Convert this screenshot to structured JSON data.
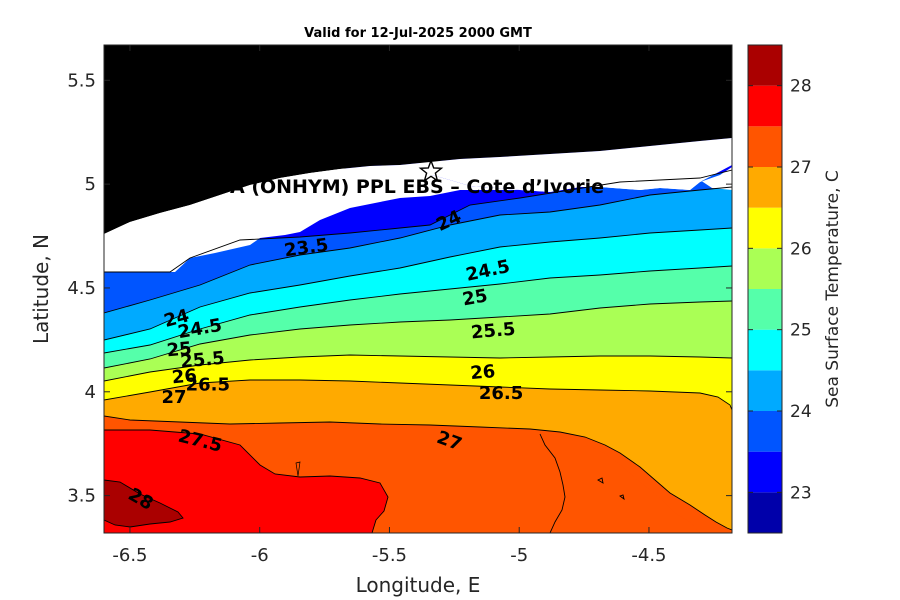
{
  "chart_data": {
    "type": "heatmap",
    "subtype": "filled-contour map",
    "title": "Valid for 12-Jul-2025 2000 GMT",
    "xlabel": "Longitude, E",
    "ylabel": "Latitude, N",
    "colorbar_label": "Sea Surface Temperature, C",
    "xlim": [
      -6.6,
      -4.18
    ],
    "ylim": [
      3.32,
      5.67
    ],
    "xticks": [
      -6.5,
      -6,
      -5.5,
      -5,
      -4.5
    ],
    "xtick_labels": [
      "-6.5",
      "-6",
      "-5.5",
      "-5",
      "-4.5"
    ],
    "yticks": [
      3.5,
      4,
      4.5,
      5,
      5.5
    ],
    "ytick_labels": [
      "3.5",
      "4",
      "4.5",
      "5",
      "5.5"
    ],
    "colorbar_range": [
      22.5,
      28.5
    ],
    "colorbar_ticks": [
      23,
      24,
      25,
      26,
      27,
      28
    ],
    "colorbar_tick_labels": [
      "23",
      "24",
      "25",
      "26",
      "27",
      "28"
    ],
    "colorbar_bands": [
      {
        "from": 22.5,
        "to": 23.0,
        "color": "#0000AA"
      },
      {
        "from": 23.0,
        "to": 23.5,
        "color": "#0000FF"
      },
      {
        "from": 23.5,
        "to": 24.0,
        "color": "#0055FF"
      },
      {
        "from": 24.0,
        "to": 24.5,
        "color": "#00AAFF"
      },
      {
        "from": 24.5,
        "to": 25.0,
        "color": "#00FFFF"
      },
      {
        "from": 25.0,
        "to": 25.5,
        "color": "#55FFAA"
      },
      {
        "from": 25.5,
        "to": 26.0,
        "color": "#AAFF55"
      },
      {
        "from": 26.0,
        "to": 26.5,
        "color": "#FFFF00"
      },
      {
        "from": 26.5,
        "to": 27.0,
        "color": "#FFAA00"
      },
      {
        "from": 27.0,
        "to": 27.5,
        "color": "#FF5500"
      },
      {
        "from": 27.5,
        "to": 28.0,
        "color": "#FF0000"
      },
      {
        "from": 28.0,
        "to": 28.5,
        "color": "#AA0000"
      }
    ],
    "contour_labels": [
      {
        "text": "23.5",
        "lon": -5.82,
        "lat": 4.69,
        "angle": -8
      },
      {
        "text": "24",
        "lon": -5.27,
        "lat": 4.82,
        "angle": -25
      },
      {
        "text": "24.5",
        "lon": -5.12,
        "lat": 4.58,
        "angle": -12
      },
      {
        "text": "25",
        "lon": -5.17,
        "lat": 4.45,
        "angle": -10
      },
      {
        "text": "25.5",
        "lon": -5.1,
        "lat": 4.29,
        "angle": -5
      },
      {
        "text": "26",
        "lon": -5.14,
        "lat": 4.09,
        "angle": -5
      },
      {
        "text": "26.5",
        "lon": -5.07,
        "lat": 3.99,
        "angle": 0
      },
      {
        "text": "27",
        "lon": -5.27,
        "lat": 3.76,
        "angle": 20
      },
      {
        "text": "27.5",
        "lon": -6.23,
        "lat": 3.76,
        "angle": 14
      },
      {
        "text": "28",
        "lon": -6.46,
        "lat": 3.48,
        "angle": 30
      },
      {
        "text": "24",
        "lon": -6.32,
        "lat": 4.35,
        "angle": -15
      },
      {
        "text": "24.5",
        "lon": -6.23,
        "lat": 4.3,
        "angle": -10
      },
      {
        "text": "25",
        "lon": -6.31,
        "lat": 4.2,
        "angle": -5
      },
      {
        "text": "25.5",
        "lon": -6.22,
        "lat": 4.15,
        "angle": -5
      },
      {
        "text": "26",
        "lon": -6.29,
        "lat": 4.07,
        "angle": -5
      },
      {
        "text": "26.5",
        "lon": -6.2,
        "lat": 4.03,
        "angle": 0
      },
      {
        "text": "27",
        "lon": -6.33,
        "lat": 3.97,
        "angle": 0
      }
    ],
    "site_marker": {
      "lon": -5.34,
      "lat": 5.06
    },
    "site_label": "A (ONHYM) PPL EBS  – Cote d’Ivorie",
    "colors": {
      "land": "#000000",
      "nodata": "#ffffff",
      "axis": "#262626"
    }
  }
}
